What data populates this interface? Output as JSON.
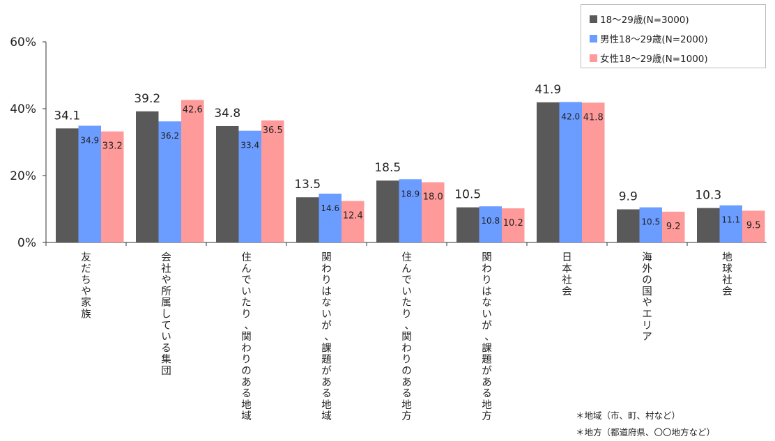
{
  "chart_data": {
    "type": "bar",
    "title": "",
    "xlabel": "",
    "ylabel": "",
    "ylim": [
      0,
      60
    ],
    "yticks": [
      {
        "value": 0,
        "label": "0%"
      },
      {
        "value": 20,
        "label": "20%"
      },
      {
        "value": 40,
        "label": "40%"
      },
      {
        "value": 60,
        "label": "60%"
      }
    ],
    "categories": [
      "友だちや家族",
      "会社や所属している集団",
      "住んでいたり、関わりのある地域",
      "関わりはないが、課題がある地域",
      "住んでいたり、関わりのある地方",
      "関わりはないが、課題がある地方",
      "日本社会",
      "海外の国やエリア",
      "地球社会"
    ],
    "series": [
      {
        "name": "18〜29歳(N=3000)",
        "color": "#595959",
        "values": [
          34.1,
          39.2,
          34.8,
          13.5,
          18.5,
          10.5,
          41.9,
          9.9,
          10.3
        ]
      },
      {
        "name": "男性18〜29歳(N=2000)",
        "color": "#6b9cff",
        "values": [
          34.9,
          36.2,
          33.4,
          14.6,
          18.9,
          10.8,
          42.0,
          10.5,
          11.1
        ]
      },
      {
        "name": "女性18〜29歳(N=1000)",
        "color": "#ff9a9a",
        "values": [
          33.2,
          42.6,
          36.5,
          12.4,
          18.0,
          10.2,
          41.8,
          9.2,
          9.5
        ]
      }
    ],
    "data_labels": [
      [
        "34.1",
        "39.2",
        "34.8",
        "13.5",
        "18.5",
        "10.5",
        "41.9",
        "9.9",
        "10.3"
      ],
      [
        "34.9",
        "36.2",
        "33.4",
        "14.6",
        "18.9",
        "10.8",
        "42.0",
        "10.5",
        "11.1"
      ],
      [
        "33.2",
        "42.6",
        "36.5",
        "12.4",
        "18.0",
        "10.2",
        "41.8",
        "9.2",
        "9.5"
      ]
    ],
    "grid": false,
    "legend_position": "top-right"
  },
  "notes": [
    "＊地域（市、町、村など）",
    "＊地方（都道府県、〇〇地方など）"
  ]
}
